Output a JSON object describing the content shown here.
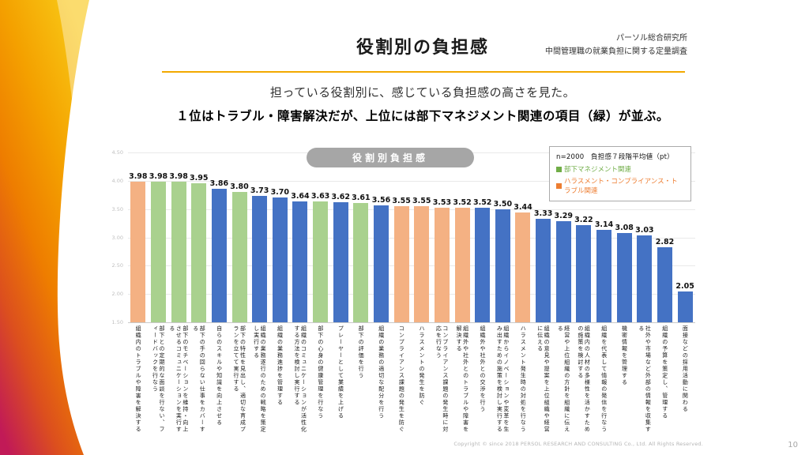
{
  "slide": {
    "title": "役割別の負担感",
    "source_line1": "パーソル総合研究所",
    "source_line2": "中間管理職の就業負担に関する定量調査",
    "subtitle_line1": "担っている役割別に、感じている負担感の高さを見た。",
    "subtitle_line2": "１位はトラブル・障害解決だが、上位には部下マネジメント関連の項目（緑）が並ぶ。",
    "footer_copyright": "Copyright © since 2018  PERSOL RESEARCH AND CONSULTING Co., Ltd. All Rights Reserved.",
    "page_number": "10",
    "accent_rule_color": "#F2A900",
    "deco_gradient": [
      "#F8C715",
      "#F4A100",
      "#EE7D00",
      "#DC4F1E",
      "#C11A57"
    ]
  },
  "chart_data": {
    "type": "bar",
    "title_badge": "役割別負担感",
    "legend": {
      "note": "n=2000　負担感７段階平均値（pt）",
      "items": [
        {
          "label": "部下マネジメント関連",
          "color": "#70AD47",
          "category": "management"
        },
        {
          "label": "ハラスメント・コンプライアンス・トラブル関連",
          "color": "#ED7D31",
          "category": "harassment"
        }
      ],
      "position": "top-right"
    },
    "ylim": [
      1.5,
      4.5
    ],
    "yticks": [
      4.5,
      4.0,
      3.5,
      3.0,
      2.5,
      2.0,
      1.5
    ],
    "grid": true,
    "colors": {
      "management": "#A9D18E",
      "harassment": "#F4B183",
      "other": "#4472C4"
    },
    "badge_color": "#A6A6A6",
    "bars": [
      {
        "label": "組織内のトラブルや障害を解決する",
        "value": 3.98,
        "category": "harassment"
      },
      {
        "label": "部下との定期的な面談を行ない、フィードバックを行なう",
        "value": 3.98,
        "category": "management"
      },
      {
        "label": "部下のモチベーションを維持・向上させるコミュニケーションを実行する",
        "value": 3.98,
        "category": "management"
      },
      {
        "label": "部下の手の回らない仕事をカバーする",
        "value": 3.95,
        "category": "management"
      },
      {
        "label": "自らのスキルや知識を向上させる",
        "value": 3.86,
        "category": "other"
      },
      {
        "label": "部下の特性を見出し、適切な育成プランを立てて実行する",
        "value": 3.8,
        "category": "management"
      },
      {
        "label": "組織の業務遂行のための戦略を策定し実行する",
        "value": 3.73,
        "category": "other"
      },
      {
        "label": "組織の業務進捗を管理する",
        "value": 3.7,
        "category": "other"
      },
      {
        "label": "組織のコミュニケーションが活性化する方法を検討し実行する",
        "value": 3.64,
        "category": "other"
      },
      {
        "label": "部下の心身の健康管理を行なう",
        "value": 3.63,
        "category": "management"
      },
      {
        "label": "プレーヤーとして業績を上げる",
        "value": 3.62,
        "category": "other"
      },
      {
        "label": "部下の評価を行う",
        "value": 3.61,
        "category": "management"
      },
      {
        "label": "組織の業務の適切な配分を行う",
        "value": 3.56,
        "category": "other"
      },
      {
        "label": "コンプライアンス課題の発生を防ぐ",
        "value": 3.55,
        "category": "harassment"
      },
      {
        "label": "ハラスメントの発生を防ぐ",
        "value": 3.55,
        "category": "harassment"
      },
      {
        "label": "コンプライアンス課題の発生時に対応を行なう",
        "value": 3.53,
        "category": "harassment"
      },
      {
        "label": "組織外や社外とのトラブルや障害を解決する",
        "value": 3.52,
        "category": "harassment"
      },
      {
        "label": "組織外や社外との交渉を行う",
        "value": 3.52,
        "category": "other"
      },
      {
        "label": "組織からイノベーションや変革を生み出すための施策を検討し実行する",
        "value": 3.5,
        "category": "other"
      },
      {
        "label": "ハラスメント発生時の対処を行なう",
        "value": 3.44,
        "category": "harassment"
      },
      {
        "label": "組織の意見や提案を上位組織や経営に伝える",
        "value": 3.33,
        "category": "other"
      },
      {
        "label": "経営や上位組織の方針を組織に伝える",
        "value": 3.29,
        "category": "other"
      },
      {
        "label": "組織内の人材の多様性を活かすための施策を検討する",
        "value": 3.22,
        "category": "other"
      },
      {
        "label": "組織を代表して情報の発信を行なう",
        "value": 3.14,
        "category": "other"
      },
      {
        "label": "機密情報を管理する",
        "value": 3.08,
        "category": "other"
      },
      {
        "label": "社外や市場など外部の情報を収集する",
        "value": 3.03,
        "category": "other"
      },
      {
        "label": "組織の予算を策定し、管理する",
        "value": 2.82,
        "category": "other"
      },
      {
        "label": "面接などの採用活動に関わる",
        "value": 2.05,
        "category": "other"
      }
    ]
  }
}
